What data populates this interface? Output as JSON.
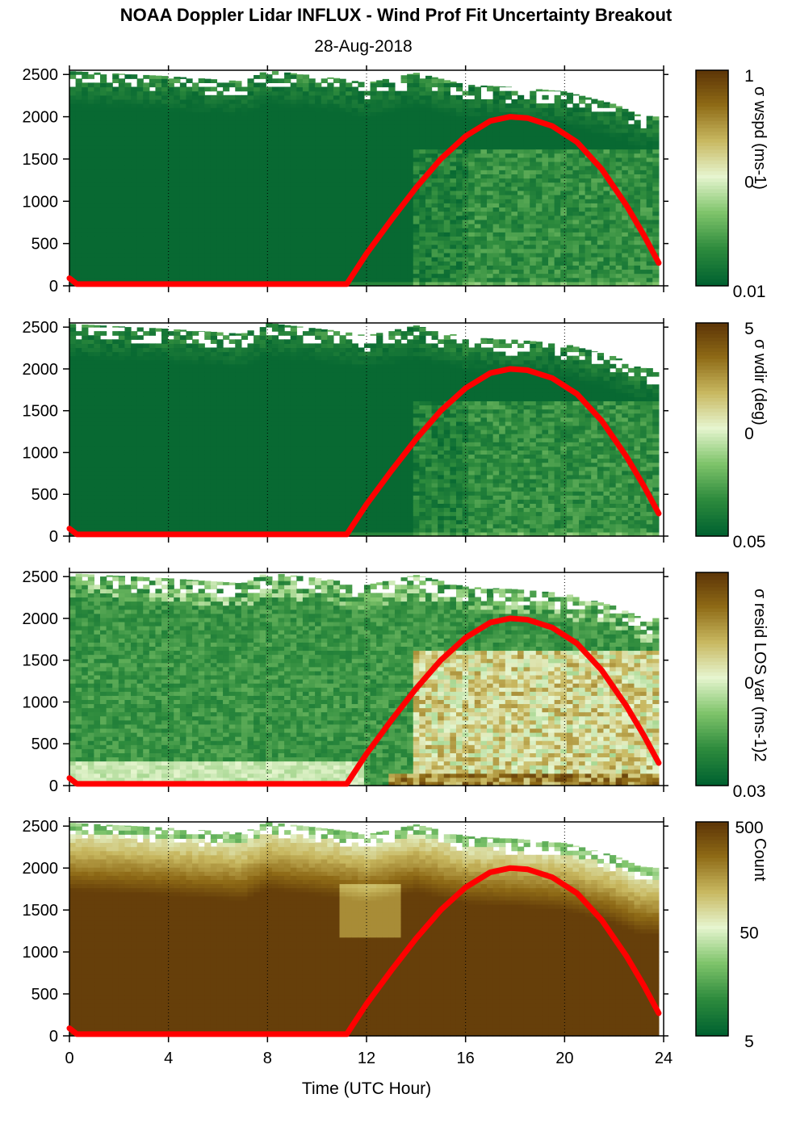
{
  "title": "NOAA Doppler Lidar INFLUX - Wind Prof Fit Uncertainty Breakout",
  "subtitle": "28-Aug-2018",
  "chart_data": {
    "type": "heatmap",
    "x": {
      "label": "Time (UTC Hour)",
      "range": [
        0,
        24
      ],
      "ticks": [
        0,
        4,
        8,
        12,
        16,
        20,
        24
      ],
      "tick_labels": [
        "0",
        "4",
        "8",
        "12",
        "16",
        "20",
        "24"
      ]
    },
    "y": {
      "range": [
        0,
        2550
      ],
      "ticks": [
        0,
        500,
        1000,
        1500,
        2000,
        2500
      ],
      "tick_labels": [
        "0",
        "500",
        "1000",
        "1500",
        "2000",
        "2500"
      ]
    },
    "grid": "dotted vertical lines at x ticks",
    "colormap": [
      "#006230",
      "#2e8b3d",
      "#7fc46b",
      "#e6f5cf",
      "#c8b860",
      "#8e6a16",
      "#5a3206"
    ],
    "overlay_line": {
      "color": "#ff0000",
      "points": [
        [
          0,
          90
        ],
        [
          0.3,
          20
        ],
        [
          11.2,
          20
        ],
        [
          12,
          380
        ],
        [
          13,
          780
        ],
        [
          14,
          1160
        ],
        [
          15,
          1500
        ],
        [
          16,
          1770
        ],
        [
          17,
          1950
        ],
        [
          17.8,
          2000
        ],
        [
          18.5,
          1985
        ],
        [
          19.5,
          1890
        ],
        [
          20.5,
          1700
        ],
        [
          21.5,
          1380
        ],
        [
          22.5,
          950
        ],
        [
          23.2,
          600
        ],
        [
          23.8,
          270
        ]
      ]
    },
    "panels": [
      {
        "colorbar_label": "σ wspd (ms-1)",
        "colorbar_ticks": [
          "1",
          "0",
          "0.01"
        ],
        "log_scale": true
      },
      {
        "colorbar_label": "σ wdir (deg)",
        "colorbar_ticks": [
          "5",
          "0",
          "0.05"
        ],
        "log_scale": true
      },
      {
        "colorbar_label": "σ resid LOS var (ms-1)2",
        "colorbar_ticks": [
          "",
          "0",
          "0.03"
        ],
        "log_scale": true
      },
      {
        "colorbar_label": "Count",
        "colorbar_ticks": [
          "500",
          "50",
          "5"
        ],
        "log_scale": true
      }
    ]
  }
}
